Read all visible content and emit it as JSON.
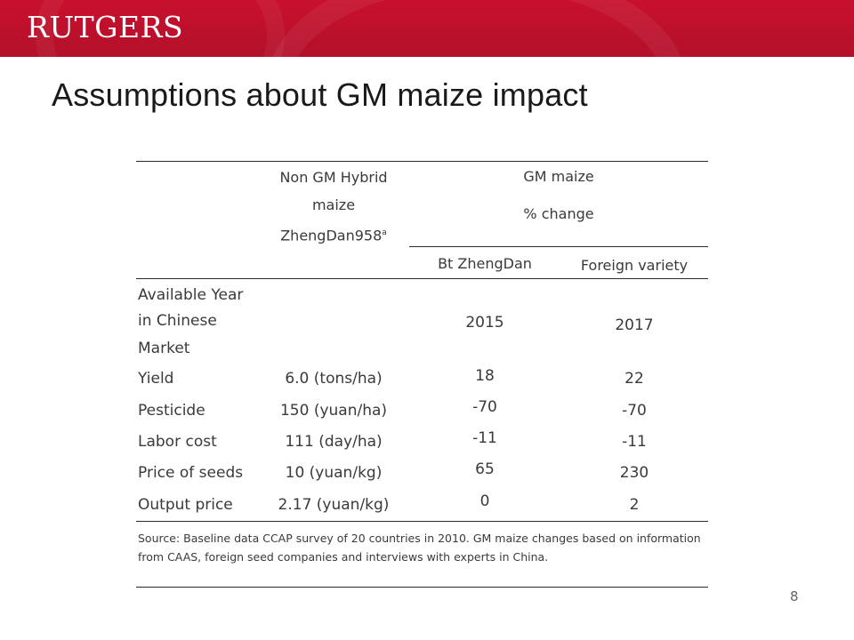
{
  "header": {
    "logo_text": "RUTGERS"
  },
  "slide": {
    "title": "Assumptions about GM maize impact",
    "page_number": "8"
  },
  "table": {
    "col_nongm": {
      "line1": "Non GM Hybrid",
      "line2": "maize",
      "line3": "ZhengDan958",
      "superscript": "a"
    },
    "col_gm": {
      "title": "GM maize",
      "subtitle": "% change"
    },
    "sub_headers": [
      "Bt ZhengDan",
      "Foreign variety"
    ],
    "available": {
      "label_lines": [
        "Available Year",
        "in Chinese",
        "Market"
      ],
      "bt": "2015",
      "foreign": "2017"
    },
    "rows": [
      {
        "label": "Yield",
        "non_gm": "6.0 (tons/ha)",
        "bt": "18",
        "foreign": "22"
      },
      {
        "label": "Pesticide",
        "non_gm": "150 (yuan/ha)",
        "bt": "-70",
        "foreign": "-70"
      },
      {
        "label": "Labor cost",
        "non_gm": "111 (day/ha)",
        "bt": "-11",
        "foreign": "-11"
      },
      {
        "label": "Price of seeds",
        "non_gm": "10 (yuan/kg)",
        "bt": "65",
        "foreign": "230"
      },
      {
        "label": "Output price",
        "non_gm": "2.17 (yuan/kg)",
        "bt": "0",
        "foreign": "2"
      }
    ],
    "source": "Source: Baseline data CCAP survey of 20 countries in 2010. GM maize changes based on information from CAAS, foreign seed companies and interviews with experts in China."
  },
  "colors": {
    "brand_red": "#c8102e",
    "text": "#3a3a3a",
    "rule": "#2a2a2a"
  }
}
